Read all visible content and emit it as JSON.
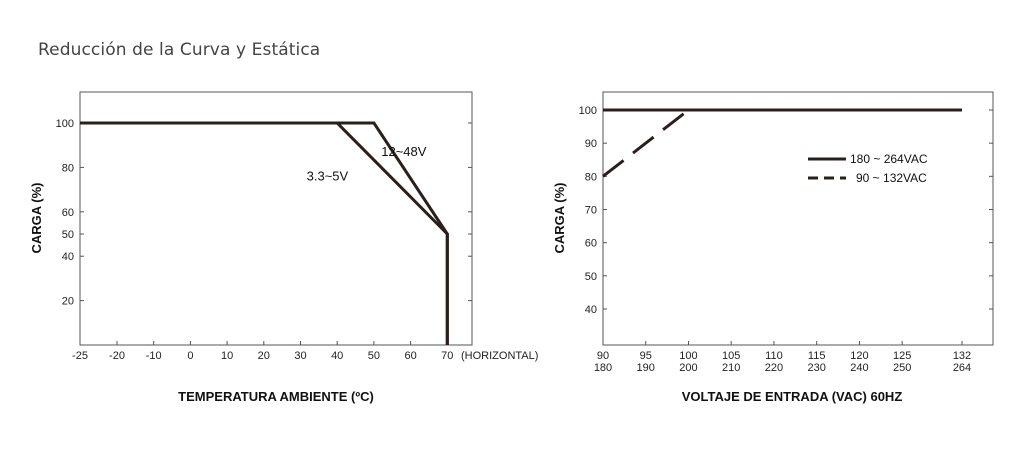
{
  "page": {
    "title": "Reducción de la Curva y Estática"
  },
  "chart_data": [
    {
      "type": "line",
      "title": "",
      "xlabel": "TEMPERATURA AMBIENTE (ºC)",
      "ylabel": "CARGA (%)",
      "xlim": [
        -25,
        73
      ],
      "ylim": [
        0,
        113
      ],
      "x_ticks": [
        -25,
        -20,
        -10,
        0,
        10,
        20,
        30,
        40,
        50,
        60,
        70
      ],
      "x_tick_labels": [
        "-25",
        "-20",
        "-10",
        "0",
        "10",
        "20",
        "30",
        "40",
        "50",
        "60",
        "70"
      ],
      "x_suffix": "(HORIZONTAL)",
      "y_ticks": [
        20,
        40,
        50,
        60,
        80,
        100
      ],
      "y_tick_labels": [
        "20",
        "40",
        "50",
        "60",
        "80",
        "100"
      ],
      "series": [
        {
          "name": "12~48V",
          "x": [
            -25,
            50,
            70,
            70
          ],
          "y": [
            100,
            100,
            50,
            0
          ],
          "style": "solid"
        },
        {
          "name": "3.3~5V",
          "x": [
            -25,
            40,
            70,
            70
          ],
          "y": [
            100,
            100,
            50,
            0
          ],
          "style": "solid"
        }
      ],
      "annotations": [
        {
          "text": "12~48V",
          "x": 52,
          "y": 87,
          "anchor": "start"
        },
        {
          "text": "3.3~5V",
          "x": 43,
          "y": 76,
          "anchor": "end"
        }
      ],
      "grid": false,
      "line_color": "#2b1f1c"
    },
    {
      "type": "line",
      "title": "",
      "xlabel": "VOLTAJE DE ENTRADA (VAC) 60HZ",
      "ylabel": "CARGA (%)",
      "xlim": [
        90,
        134
      ],
      "ylim": [
        30,
        106
      ],
      "x_ticks": [
        90,
        95,
        100,
        105,
        110,
        115,
        120,
        125,
        132
      ],
      "x_tick_labels": [
        "90",
        "95",
        "100",
        "105",
        "110",
        "115",
        "120",
        "125",
        "132"
      ],
      "x_tick_labels_secondary": [
        "180",
        "190",
        "200",
        "210",
        "220",
        "230",
        "240",
        "250",
        "264"
      ],
      "y_ticks": [
        40,
        50,
        60,
        70,
        80,
        90,
        100
      ],
      "y_tick_labels": [
        "40",
        "50",
        "60",
        "70",
        "80",
        "90",
        "100"
      ],
      "series": [
        {
          "name": "180 ~ 264VAC",
          "x": [
            90,
            132
          ],
          "y": [
            100,
            100
          ],
          "style": "solid"
        },
        {
          "name": "90 ~ 132VAC",
          "x": [
            90,
            100,
            132
          ],
          "y": [
            80,
            100,
            100
          ],
          "style": "dashed"
        }
      ],
      "legend": {
        "placement": "right",
        "entries": [
          "180 ~ 264VAC",
          "90 ~ 132VAC"
        ]
      },
      "grid": false,
      "line_color": "#2b1f1c"
    }
  ]
}
